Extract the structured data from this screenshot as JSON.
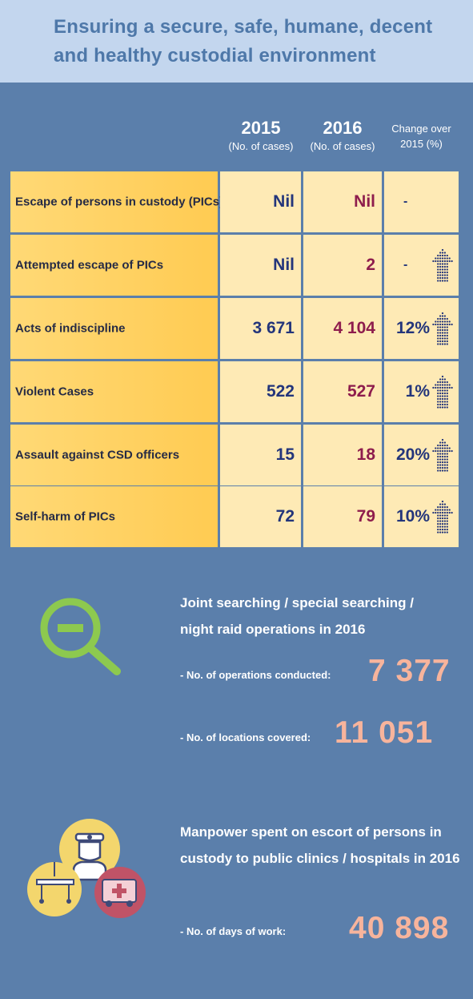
{
  "banner": {
    "line1": "Ensuring a secure, safe, humane, decent",
    "line2": "and healthy custodial environment"
  },
  "table": {
    "headers": {
      "y2015": "2015",
      "y2015_sub": "(No. of cases)",
      "y2016": "2016",
      "y2016_sub": "(No. of cases)",
      "change_l1": "Change over",
      "change_l2": "2015 (%)"
    },
    "rows": [
      {
        "label": "Escape of persons in custody (PICs)",
        "v2015": "Nil",
        "v2016": "Nil",
        "change": "-",
        "arrow": false
      },
      {
        "label": "Attempted escape of PICs",
        "v2015": "Nil",
        "v2016": "2",
        "change": "-",
        "arrow": true
      },
      {
        "label": "Acts of indiscipline",
        "v2015": "3 671",
        "v2016": "4 104",
        "change": "12%",
        "arrow": true
      },
      {
        "label": "Violent Cases",
        "v2015": "522",
        "v2016": "527",
        "change": "1%",
        "arrow": true
      },
      {
        "label": "Assault against CSD officers",
        "v2015": "15",
        "v2016": "18",
        "change": "20%",
        "arrow": true
      },
      {
        "label": "Self-harm of PICs",
        "v2015": "72",
        "v2016": "79",
        "change": "10%",
        "arrow": true
      }
    ],
    "arrow_icon": "up-arrow-icon"
  },
  "search": {
    "icon": "magnifier-minus-icon",
    "title_l1": "Joint searching / special searching /",
    "title_l2": "night raid operations in 2016",
    "ops_label": "- No. of operations conducted:",
    "ops_value": "7 377",
    "loc_label": "- No. of locations covered:",
    "loc_value": "11 051"
  },
  "escort": {
    "icons": [
      "doctor-icon",
      "hospital-bed-icon",
      "ambulance-icon"
    ],
    "title_l1": "Manpower spent on escort of persons in",
    "title_l2": "custody to public clinics / hospitals in 2016",
    "days_label": "- No. of days of work:",
    "days_value": "40 898"
  },
  "colors": {
    "background": "#5b7fab",
    "banner": "#c3d6ee",
    "label_cell": "#ffcb52",
    "value_cell": "#feeab5",
    "value_2015": "#23357b",
    "value_2016": "#8e1d4d",
    "stat_value": "#f7b49c",
    "icon_green": "#8dc94f",
    "icon_yellow": "#f3d66d",
    "icon_red": "#c05367"
  }
}
